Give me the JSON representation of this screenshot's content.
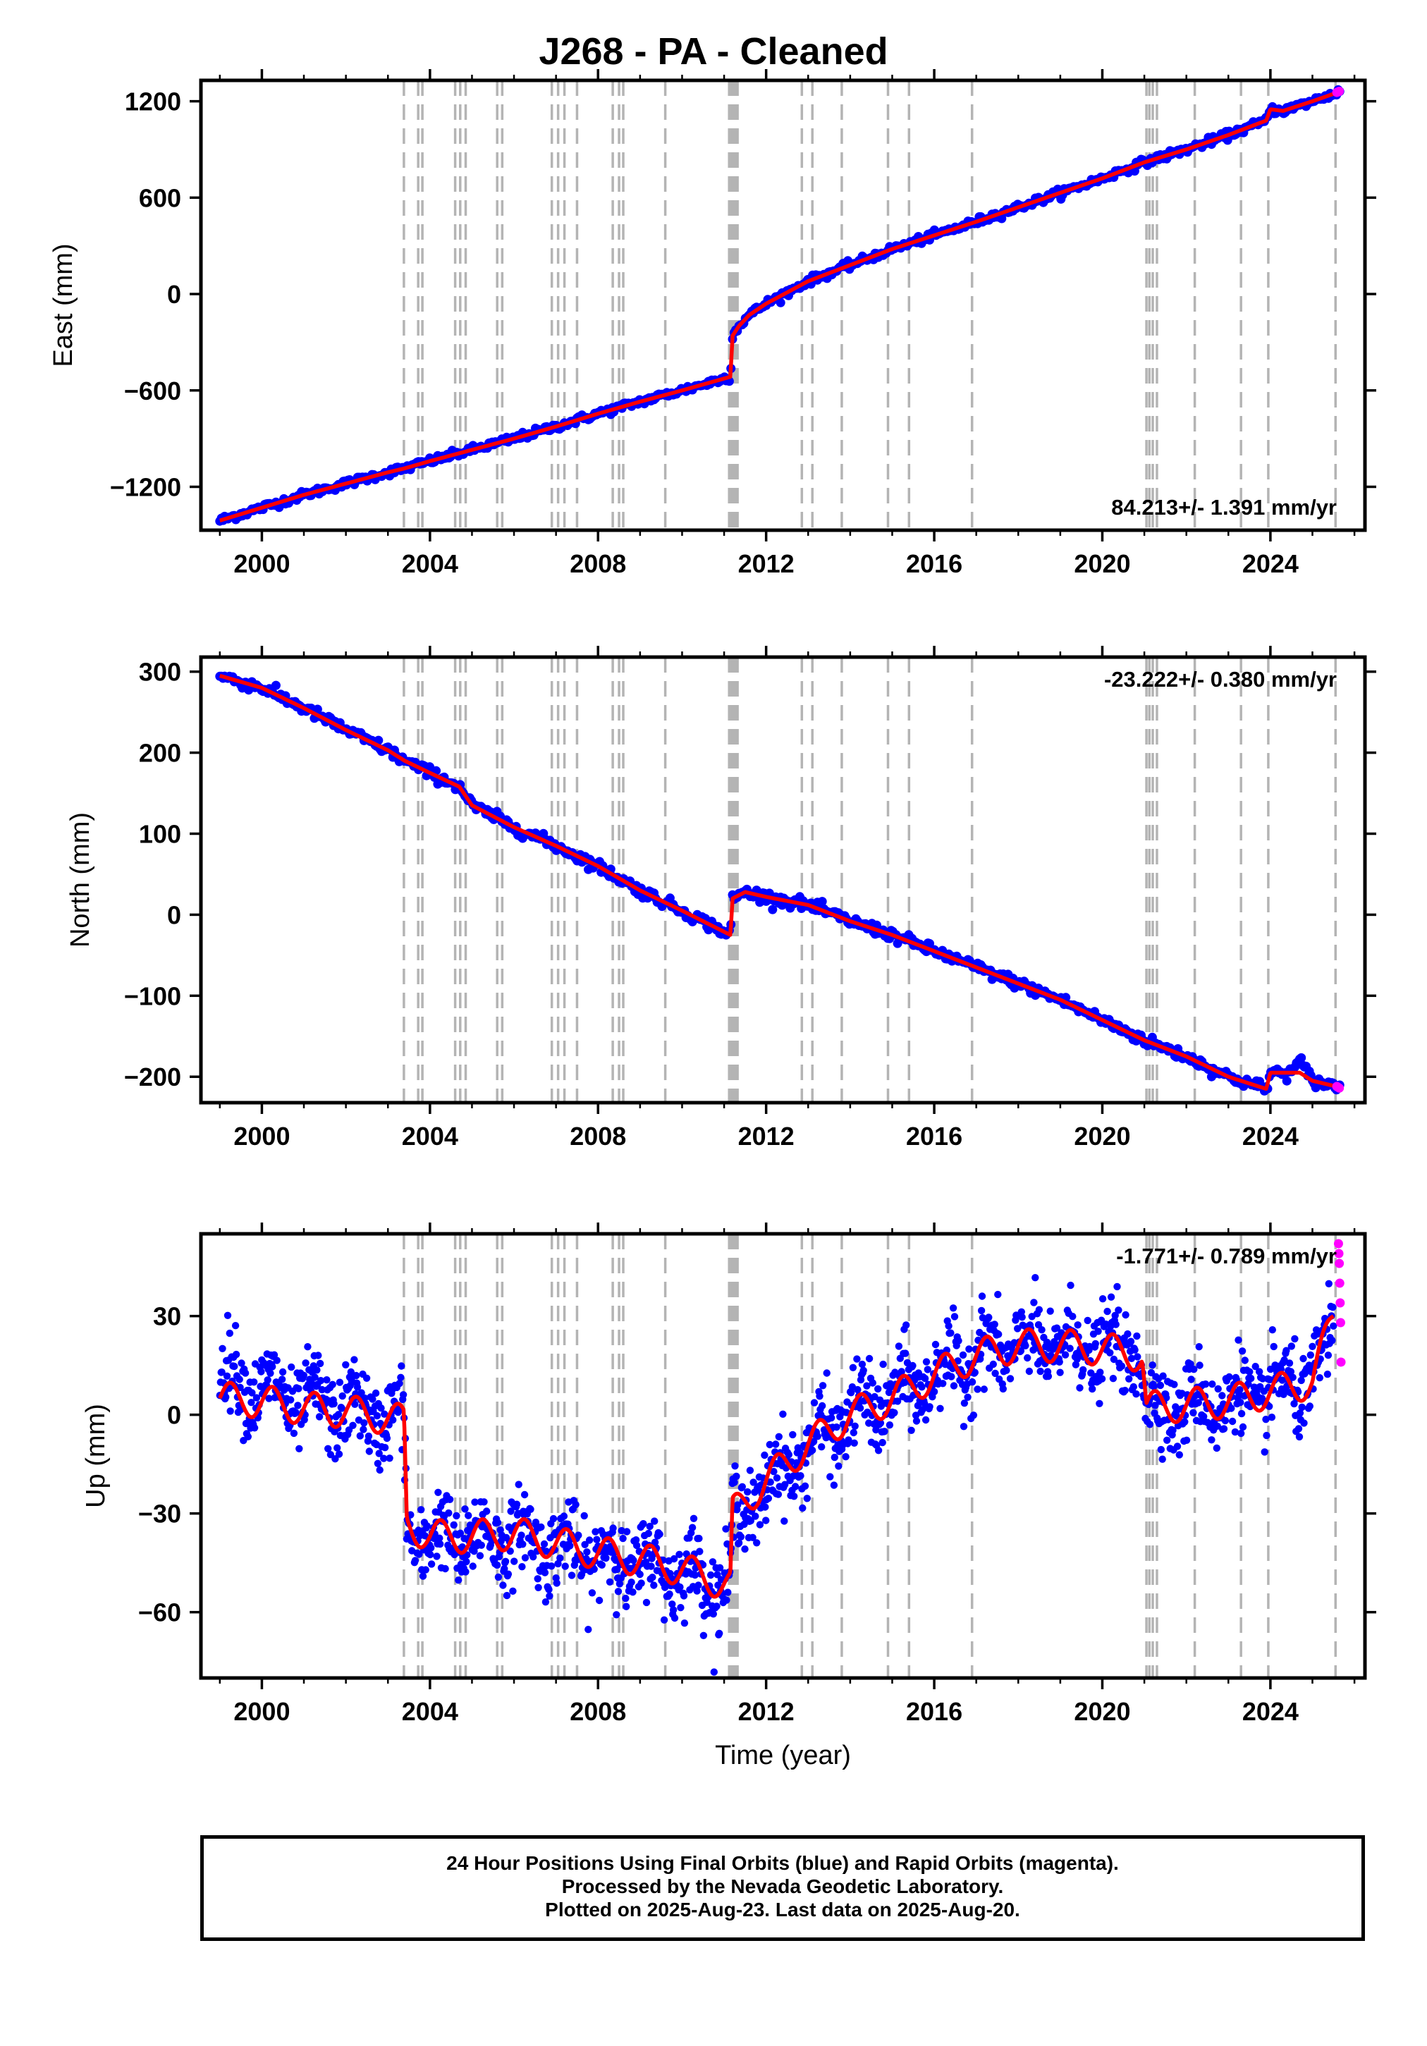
{
  "title": "J268  - PA - Cleaned",
  "footer": {
    "line1": "24 Hour Positions Using Final Orbits (blue) and Rapid Orbits (magenta).",
    "line2": "Processed by the Nevada Geodetic Laboratory.",
    "line3": "Plotted on 2025-Aug-23. Last data on 2025-Aug-20."
  },
  "colors": {
    "final_orbits": "#0000ff",
    "rapid_orbits": "#ff00ff",
    "model": "#ff0000",
    "event_lines": "#b4b4b4"
  },
  "chart_data": [
    {
      "type": "scatter",
      "ylabel": "East (mm)",
      "xlabel": "",
      "xlim": [
        1998.55,
        2026.25
      ],
      "ylim": [
        -1470,
        1330
      ],
      "xticks": [
        2000,
        2004,
        2008,
        2012,
        2016,
        2020,
        2024
      ],
      "yticks": [
        -1200,
        -600,
        0,
        600,
        1200
      ],
      "ytick_labels": [
        "−1200",
        "−600",
        "0",
        "600",
        "1200"
      ],
      "velocity_label": "84.213+/- 1.391 mm/yr",
      "velocity_position": "bottom-right",
      "grid": false,
      "series": [
        {
          "name": "Final Orbits",
          "color": "#0000ff",
          "x": [
            1999.0,
            2000.0,
            2001.0,
            2002.0,
            2003.0,
            2003.4,
            2004.0,
            2005.0,
            2006.0,
            2007.0,
            2008.0,
            2009.0,
            2010.0,
            2011.15,
            2011.2,
            2011.35,
            2011.6,
            2012.0,
            2013.0,
            2014.0,
            2015.0,
            2016.0,
            2017.0,
            2018.0,
            2019.0,
            2020.0,
            2021.0,
            2022.0,
            2023.0,
            2023.9,
            2024.0,
            2024.3,
            2025.0,
            2025.65
          ],
          "y": [
            -1410,
            -1330,
            -1250,
            -1180,
            -1110,
            -1085,
            -1040,
            -970,
            -900,
            -825,
            -745,
            -670,
            -600,
            -515,
            -260,
            -200,
            -130,
            -60,
            80,
            180,
            280,
            365,
            450,
            540,
            630,
            720,
            820,
            900,
            990,
            1080,
            1150,
            1140,
            1200,
            1260
          ]
        },
        {
          "name": "Rapid Orbits",
          "color": "#ff00ff",
          "x": [
            2025.58,
            2025.61,
            2025.64
          ],
          "y": [
            1255,
            1258,
            1262
          ]
        }
      ],
      "model": {
        "color": "#ff0000",
        "x": [
          1999.0,
          2000.0,
          2001.0,
          2002.0,
          2003.0,
          2003.4,
          2004.0,
          2005.0,
          2006.0,
          2007.0,
          2008.0,
          2009.0,
          2010.0,
          2011.15,
          2011.2,
          2011.35,
          2011.6,
          2012.0,
          2013.0,
          2014.0,
          2015.0,
          2016.0,
          2017.0,
          2018.0,
          2019.0,
          2020.0,
          2021.0,
          2022.0,
          2023.0,
          2023.9,
          2024.0,
          2024.3,
          2025.0,
          2025.65
        ],
        "y": [
          -1410,
          -1330,
          -1250,
          -1180,
          -1110,
          -1085,
          -1040,
          -970,
          -900,
          -825,
          -745,
          -670,
          -600,
          -515,
          -260,
          -200,
          -130,
          -60,
          80,
          180,
          280,
          365,
          450,
          540,
          630,
          720,
          820,
          900,
          990,
          1080,
          1150,
          1140,
          1200,
          1260
        ]
      },
      "noise_mm": 12,
      "dot_count": 700
    },
    {
      "type": "scatter",
      "ylabel": "North (mm)",
      "xlabel": "",
      "xlim": [
        1998.55,
        2026.25
      ],
      "ylim": [
        -232,
        318
      ],
      "xticks": [
        2000,
        2004,
        2008,
        2012,
        2016,
        2020,
        2024
      ],
      "yticks": [
        -200,
        -100,
        0,
        100,
        200,
        300
      ],
      "ytick_labels": [
        "−200",
        "−100",
        "0",
        "100",
        "200",
        "300"
      ],
      "velocity_label": "-23.222+/- 0.380 mm/yr",
      "velocity_position": "top-right",
      "grid": false,
      "series": [
        {
          "name": "Final Orbits",
          "color": "#0000ff",
          "x": [
            1999.0,
            2000.0,
            2001.0,
            2002.0,
            2003.0,
            2003.4,
            2004.0,
            2004.7,
            2005.0,
            2006.0,
            2007.0,
            2008.0,
            2009.0,
            2010.0,
            2011.15,
            2011.2,
            2011.5,
            2012.0,
            2013.0,
            2014.0,
            2015.0,
            2016.0,
            2017.0,
            2018.0,
            2019.0,
            2020.0,
            2021.0,
            2022.0,
            2023.0,
            2023.9,
            2024.0,
            2024.5,
            2024.7,
            2025.0,
            2025.65
          ],
          "y": [
            295,
            280,
            255,
            228,
            203,
            190,
            175,
            158,
            135,
            108,
            85,
            60,
            30,
            5,
            -25,
            20,
            28,
            22,
            12,
            -8,
            -25,
            -45,
            -65,
            -85,
            -105,
            -130,
            -155,
            -175,
            -200,
            -215,
            -195,
            -195,
            -180,
            -205,
            -213
          ]
        },
        {
          "name": "Rapid Orbits",
          "color": "#ff00ff",
          "x": [
            2025.58,
            2025.61,
            2025.64
          ],
          "y": [
            -212,
            -213,
            -214
          ]
        }
      ],
      "model": {
        "color": "#ff0000",
        "x": [
          1999.0,
          2000.0,
          2001.0,
          2002.0,
          2003.0,
          2003.4,
          2004.0,
          2004.7,
          2005.0,
          2006.0,
          2007.0,
          2008.0,
          2009.0,
          2010.0,
          2011.15,
          2011.2,
          2011.5,
          2012.0,
          2013.0,
          2014.0,
          2015.0,
          2016.0,
          2017.0,
          2018.0,
          2019.0,
          2020.0,
          2021.0,
          2022.0,
          2023.0,
          2023.9,
          2024.0,
          2024.5,
          2024.7,
          2025.0,
          2025.65
        ],
        "y": [
          295,
          280,
          255,
          228,
          203,
          190,
          175,
          158,
          135,
          108,
          85,
          60,
          30,
          5,
          -25,
          20,
          28,
          22,
          12,
          -8,
          -25,
          -45,
          -65,
          -85,
          -105,
          -130,
          -155,
          -175,
          -200,
          -215,
          -195,
          -195,
          -195,
          -205,
          -213
        ]
      },
      "noise_mm": 3.5,
      "dot_count": 700
    },
    {
      "type": "scatter",
      "ylabel": "Up (mm)",
      "xlabel": "Time (year)",
      "xlim": [
        1998.55,
        2026.25
      ],
      "ylim": [
        -80,
        55
      ],
      "xticks": [
        2000,
        2004,
        2008,
        2012,
        2016,
        2020,
        2024
      ],
      "yticks": [
        -60,
        -30,
        0,
        30
      ],
      "ytick_labels": [
        "−60",
        "−30",
        "0",
        "30"
      ],
      "velocity_label": "-1.771+/- 0.789 mm/yr",
      "velocity_position": "top-right",
      "grid": false,
      "series": [
        {
          "name": "Final Orbits",
          "color": "#0000ff",
          "x": [
            1999.0,
            2000.0,
            2001.0,
            2002.0,
            2003.0,
            2003.38,
            2003.45,
            2004.0,
            2005.0,
            2006.0,
            2007.0,
            2008.0,
            2009.0,
            2010.0,
            2011.15,
            2011.2,
            2012.0,
            2013.0,
            2014.0,
            2015.0,
            2016.0,
            2017.0,
            2018.0,
            2019.0,
            2020.0,
            2020.95,
            2021.05,
            2022.0,
            2023.0,
            2024.0,
            2025.0,
            2025.5
          ],
          "y": [
            12,
            8,
            4,
            2,
            -1,
            -2,
            -35,
            -38,
            -38,
            -37,
            -40,
            -43,
            -45,
            -48,
            -52,
            -32,
            -22,
            -10,
            0,
            5,
            12,
            18,
            21,
            21,
            20,
            18,
            2,
            3,
            4,
            7,
            10,
            24
          ]
        },
        {
          "name": "Rapid Orbits",
          "color": "#ff00ff",
          "x": [
            2025.62,
            2025.63,
            2025.64,
            2025.65,
            2025.66,
            2025.67,
            2025.68
          ],
          "y": [
            52,
            49,
            46,
            40,
            34,
            28,
            16
          ]
        }
      ],
      "model": {
        "color": "#ff0000",
        "x": [
          1999.0,
          2000.0,
          2001.0,
          2002.0,
          2003.0,
          2003.38,
          2003.45,
          2004.0,
          2005.0,
          2006.0,
          2007.0,
          2008.0,
          2009.0,
          2010.0,
          2011.15,
          2011.2,
          2012.0,
          2013.0,
          2014.0,
          2015.0,
          2016.0,
          2017.0,
          2018.0,
          2019.0,
          2020.0,
          2020.95,
          2021.05,
          2022.0,
          2023.0,
          2024.0,
          2025.0,
          2025.5
        ],
        "y": [
          5,
          4,
          2,
          1,
          -1,
          -2,
          -33,
          -37,
          -37,
          -36,
          -39,
          -42,
          -44,
          -47,
          -52,
          -30,
          -20,
          -9,
          0,
          5,
          12,
          18,
          21,
          21,
          20,
          18,
          2,
          3,
          4,
          7,
          10,
          30
        ]
      },
      "seasonal_amplitude_mm": 5,
      "noise_mm": 6,
      "dot_count": 1700
    }
  ],
  "event_lines_x": [
    2003.38,
    2003.72,
    2003.82,
    2004.6,
    2004.72,
    2004.85,
    2005.6,
    2005.72,
    2006.9,
    2007.05,
    2007.2,
    2007.5,
    2008.35,
    2008.5,
    2008.6,
    2009.6,
    2011.12,
    2011.17,
    2011.22,
    2011.27,
    2011.32,
    2012.85,
    2013.1,
    2013.8,
    2014.9,
    2015.4,
    2016.9,
    2021.05,
    2021.12,
    2021.2,
    2021.3,
    2022.2,
    2023.3,
    2023.95,
    2025.55
  ]
}
